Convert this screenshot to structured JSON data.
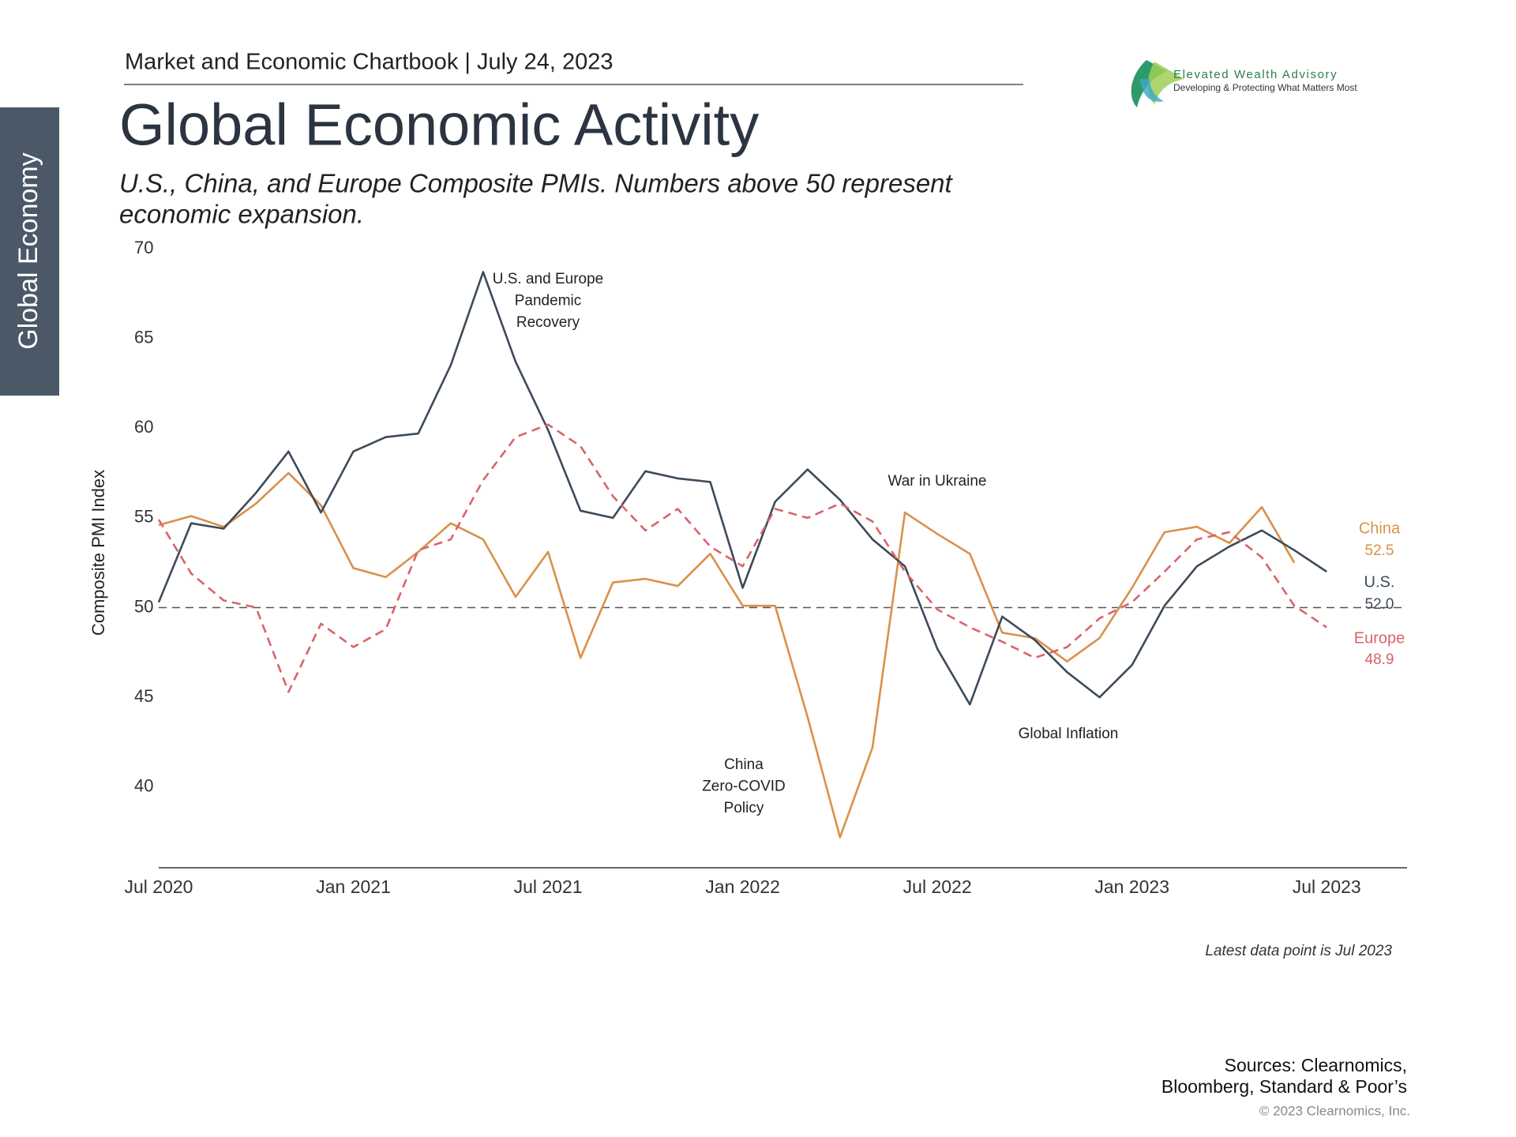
{
  "header": {
    "chartbook": "Market and Economic Chartbook | July 24, 2023",
    "brand": "Elevated Wealth Advisory",
    "tagline": "Developing & Protecting What Matters Most",
    "section_tab": "Global Economy"
  },
  "chart_data": {
    "type": "line",
    "title": "Global Economic Activity",
    "subtitle": [
      "U.S., China, and Europe Composite PMIs. Numbers above 50 represent",
      "economic expansion."
    ],
    "y_label": "Composite PMI Index",
    "categories": [
      "Jul 2020",
      null,
      null,
      null,
      null,
      null,
      "Jan 2021",
      null,
      null,
      null,
      null,
      null,
      "Jul 2021",
      null,
      null,
      null,
      null,
      null,
      "Jan 2022",
      null,
      null,
      null,
      null,
      null,
      "Jul 2022",
      null,
      null,
      null,
      null,
      null,
      "Jan 2023",
      null,
      null,
      null,
      null,
      null,
      "Jul 2023"
    ],
    "ylim": [
      35.5,
      70
    ],
    "yticks": [
      40,
      45,
      50,
      55,
      60,
      65,
      70
    ],
    "reference_line": 50,
    "series": [
      {
        "name": "China",
        "color": "#d9914a",
        "dashed": false,
        "values": [
          54.6,
          55.1,
          54.5,
          55.8,
          57.5,
          55.7,
          52.2,
          51.7,
          53.1,
          54.7,
          53.8,
          50.6,
          53.1,
          47.2,
          51.4,
          51.6,
          51.2,
          53.0,
          50.1,
          50.1,
          43.9,
          37.2,
          42.2,
          55.3,
          54.1,
          53.0,
          48.6,
          48.3,
          47.0,
          48.3,
          51.1,
          54.2,
          54.5,
          53.6,
          55.6,
          52.5,
          null
        ],
        "value_labels": [
          null,
          null,
          null,
          null,
          null,
          null,
          null,
          null,
          null,
          null,
          null,
          null,
          null,
          null,
          null,
          null,
          null,
          null,
          null,
          null,
          null,
          null,
          null,
          null,
          null,
          null,
          null,
          null,
          null,
          null,
          null,
          null,
          null,
          null,
          null,
          "52.5",
          null
        ]
      },
      {
        "name": "U.S.",
        "color": "#3d4a5a",
        "dashed": false,
        "values": [
          50.3,
          54.7,
          54.4,
          56.4,
          58.7,
          55.3,
          58.7,
          59.5,
          59.7,
          63.5,
          68.7,
          63.7,
          59.9,
          55.4,
          55.0,
          57.6,
          57.2,
          57.0,
          51.1,
          55.9,
          57.7,
          56.0,
          53.8,
          52.3,
          47.7,
          44.6,
          49.5,
          48.2,
          46.4,
          45.0,
          46.8,
          50.1,
          52.3,
          53.4,
          54.3,
          53.2,
          52.0
        ],
        "value_labels": [
          null,
          null,
          null,
          null,
          null,
          null,
          null,
          null,
          null,
          null,
          null,
          null,
          null,
          null,
          null,
          null,
          null,
          null,
          null,
          null,
          null,
          null,
          null,
          null,
          null,
          null,
          null,
          null,
          null,
          null,
          null,
          null,
          null,
          null,
          null,
          null,
          "52.0"
        ]
      },
      {
        "name": "Europe",
        "color": "#d9646a",
        "dashed": true,
        "values": [
          54.9,
          51.9,
          50.4,
          50.0,
          45.3,
          49.1,
          47.8,
          48.8,
          53.2,
          53.8,
          57.1,
          59.5,
          60.2,
          59.0,
          56.2,
          54.3,
          55.5,
          53.4,
          52.3,
          55.5,
          55.0,
          55.8,
          54.8,
          52.0,
          49.9,
          48.9,
          48.1,
          47.2,
          47.8,
          49.4,
          50.3,
          52.0,
          53.8,
          54.2,
          52.8,
          50.1,
          48.9
        ],
        "value_labels": [
          null,
          null,
          null,
          null,
          null,
          null,
          null,
          null,
          null,
          null,
          null,
          null,
          null,
          null,
          null,
          null,
          null,
          null,
          null,
          null,
          null,
          null,
          null,
          null,
          null,
          null,
          null,
          null,
          null,
          null,
          null,
          null,
          null,
          null,
          null,
          null,
          "48.9"
        ]
      }
    ],
    "annotations": [
      [
        "U.S. and Europe",
        "Pandemic",
        "Recovery"
      ],
      [
        "War in Ukraine"
      ],
      [
        "Global Inflation"
      ],
      [
        "China",
        "Zero-COVID",
        "Policy"
      ]
    ],
    "note": "Latest data point is Jul 2023"
  },
  "footer": {
    "sources": [
      "Sources: Clearnomics,",
      "Bloomberg, Standard & Poor’s"
    ],
    "copyright": "© 2023 Clearnomics, Inc."
  }
}
